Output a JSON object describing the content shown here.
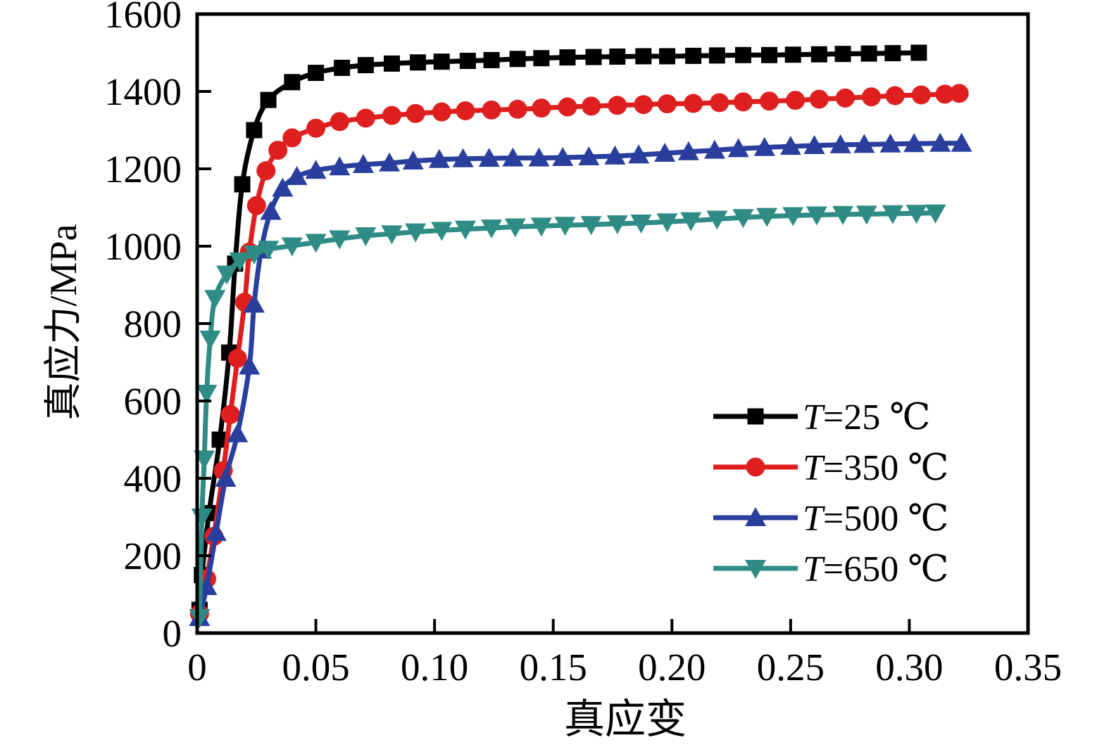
{
  "figure": {
    "background": "#ffffff"
  },
  "chart_data": {
    "type": "line",
    "title": "",
    "xlabel": "真应变",
    "ylabel": "真应力/MPa",
    "xlim": [
      0,
      0.35
    ],
    "ylim": [
      0,
      1600
    ],
    "grid": false,
    "legend_position": "lower-right",
    "xticks": {
      "values": [
        0,
        0.05,
        0.1,
        0.15,
        0.2,
        0.25,
        0.3,
        0.35
      ],
      "labels": [
        "0",
        "0.05",
        "0.10",
        "0.15",
        "0.20",
        "0.25",
        "0.30",
        "0.35"
      ]
    },
    "yticks": {
      "values": [
        0,
        200,
        400,
        600,
        800,
        1000,
        1200,
        1400,
        1600
      ],
      "labels": [
        "0",
        "200",
        "400",
        "600",
        "800",
        "1000",
        "1200",
        "1400",
        "1600"
      ]
    },
    "series": [
      {
        "name": "t25",
        "label": "T=25 ℃",
        "color": "#000000",
        "marker": "square",
        "x": [
          0.001,
          0.002,
          0.005,
          0.0095,
          0.0135,
          0.016,
          0.019,
          0.024,
          0.03,
          0.04,
          0.05,
          0.061,
          0.071,
          0.082,
          0.093,
          0.103,
          0.114,
          0.124,
          0.135,
          0.145,
          0.156,
          0.167,
          0.177,
          0.188,
          0.198,
          0.209,
          0.219,
          0.23,
          0.241,
          0.251,
          0.262,
          0.272,
          0.283,
          0.293,
          0.304
        ],
        "y": [
          60,
          150,
          310,
          500,
          725,
          955,
          1160,
          1300,
          1378,
          1424,
          1448,
          1461,
          1468,
          1472,
          1475,
          1477,
          1479,
          1481,
          1484,
          1486,
          1488,
          1489,
          1490,
          1491,
          1491,
          1492,
          1493,
          1494,
          1494,
          1495,
          1496,
          1497,
          1498,
          1499,
          1500
        ]
      },
      {
        "name": "t350",
        "label": "T=350 ℃",
        "color": "#df1f1f",
        "marker": "circle",
        "x": [
          0.001,
          0.004,
          0.007,
          0.011,
          0.014,
          0.017,
          0.02,
          0.022,
          0.025,
          0.029,
          0.034,
          0.04,
          0.05,
          0.06,
          0.071,
          0.082,
          0.092,
          0.103,
          0.113,
          0.124,
          0.135,
          0.145,
          0.156,
          0.166,
          0.177,
          0.188,
          0.198,
          0.209,
          0.22,
          0.23,
          0.241,
          0.252,
          0.262,
          0.273,
          0.284,
          0.294,
          0.305,
          0.315,
          0.321
        ],
        "y": [
          50,
          140,
          250,
          420,
          565,
          710,
          855,
          985,
          1105,
          1195,
          1248,
          1280,
          1305,
          1322,
          1331,
          1338,
          1343,
          1347,
          1350,
          1352,
          1354,
          1357,
          1360,
          1362,
          1364,
          1366,
          1368,
          1369,
          1371,
          1373,
          1375,
          1377,
          1380,
          1383,
          1386,
          1389,
          1391,
          1393,
          1395
        ]
      },
      {
        "name": "t500",
        "label": "T=500 ℃",
        "color": "#2a3f9d",
        "marker": "triangle-up",
        "x": [
          0.001,
          0.004,
          0.008,
          0.012,
          0.017,
          0.022,
          0.024,
          0.027,
          0.031,
          0.036,
          0.042,
          0.05,
          0.06,
          0.07,
          0.081,
          0.091,
          0.102,
          0.112,
          0.123,
          0.133,
          0.144,
          0.154,
          0.165,
          0.176,
          0.186,
          0.197,
          0.207,
          0.218,
          0.228,
          0.239,
          0.25,
          0.26,
          0.271,
          0.281,
          0.292,
          0.302,
          0.313,
          0.322
        ],
        "y": [
          40,
          120,
          260,
          400,
          515,
          690,
          850,
          990,
          1090,
          1150,
          1180,
          1196,
          1205,
          1211,
          1215,
          1220,
          1224,
          1226,
          1227,
          1228,
          1228,
          1229,
          1231,
          1233,
          1236,
          1240,
          1244,
          1248,
          1252,
          1255,
          1258,
          1260,
          1262,
          1263,
          1264,
          1265,
          1266,
          1266
        ]
      },
      {
        "name": "t650",
        "label": "T=650 ℃",
        "color": "#2f8c85",
        "marker": "triangle-down",
        "x": [
          0.001,
          0.002,
          0.003,
          0.004,
          0.0055,
          0.0075,
          0.0125,
          0.018,
          0.024,
          0.03,
          0.04,
          0.05,
          0.06,
          0.071,
          0.082,
          0.092,
          0.103,
          0.113,
          0.124,
          0.134,
          0.145,
          0.155,
          0.166,
          0.177,
          0.187,
          0.198,
          0.208,
          0.219,
          0.23,
          0.24,
          0.251,
          0.261,
          0.272,
          0.282,
          0.293,
          0.303,
          0.311
        ],
        "y": [
          40,
          300,
          450,
          620,
          760,
          865,
          928,
          962,
          980,
          992,
          1001,
          1010,
          1019,
          1027,
          1032,
          1037,
          1041,
          1044,
          1047,
          1050,
          1052,
          1054,
          1056,
          1058,
          1060,
          1063,
          1066,
          1070,
          1074,
          1077,
          1079,
          1081,
          1082,
          1083,
          1084,
          1085,
          1086
        ]
      }
    ],
    "style": {
      "axis_color": "#000000",
      "frame_width": 5,
      "line_width": 7,
      "tick_length": 20,
      "tick_width": 4
    }
  }
}
